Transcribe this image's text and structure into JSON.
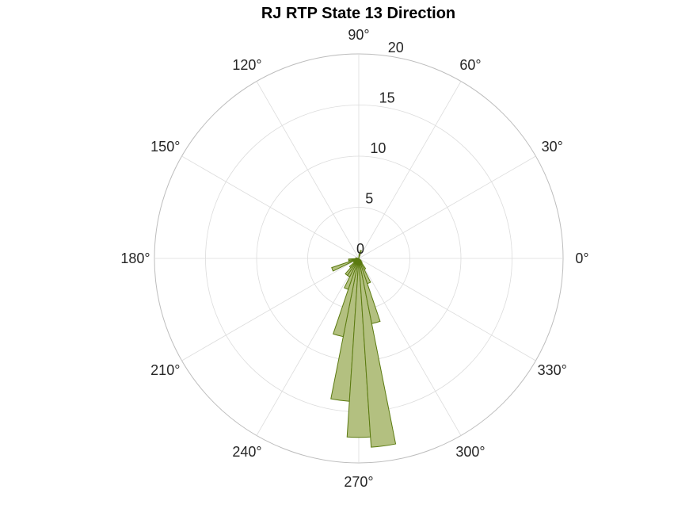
{
  "chart_data": {
    "type": "polar-histogram",
    "title": "RJ  RTP State 13 Direction",
    "theta_ticks": [
      "0°",
      "30°",
      "60°",
      "90°",
      "120°",
      "150°",
      "180°",
      "210°",
      "240°",
      "270°",
      "300°",
      "330°"
    ],
    "theta_tick_values_deg": [
      0,
      30,
      60,
      90,
      120,
      150,
      180,
      210,
      240,
      270,
      300,
      330
    ],
    "r_ticks": [
      "0",
      "5",
      "10",
      "15",
      "20"
    ],
    "r_tick_values": [
      0,
      5,
      10,
      15,
      20
    ],
    "rlim": [
      0,
      20
    ],
    "r_label_angle_deg": 80,
    "bin_width_deg": 7.5,
    "bins": [
      {
        "center_deg": 262.5,
        "value": 14
      },
      {
        "center_deg": 255,
        "value": 7.8
      },
      {
        "center_deg": 247.5,
        "value": 3.2
      },
      {
        "center_deg": 270,
        "value": 17.5
      },
      {
        "center_deg": 277.5,
        "value": 18.5
      },
      {
        "center_deg": 285,
        "value": 6.5
      },
      {
        "center_deg": 292.5,
        "value": 2.6
      },
      {
        "center_deg": 300,
        "value": 1.2
      },
      {
        "center_deg": 240,
        "value": 2
      },
      {
        "center_deg": 232.5,
        "value": 2
      },
      {
        "center_deg": 225,
        "value": 1.2
      },
      {
        "center_deg": 217.5,
        "value": 0.6
      },
      {
        "center_deg": 210,
        "value": 0.4
      },
      {
        "center_deg": 202.5,
        "value": 2.8
      },
      {
        "center_deg": 195,
        "value": 1
      },
      {
        "center_deg": 187.5,
        "value": 1
      },
      {
        "center_deg": 307.5,
        "value": 0.5
      },
      {
        "center_deg": 315,
        "value": 0.3
      },
      {
        "center_deg": 75,
        "value": 0.8
      },
      {
        "center_deg": 82.5,
        "value": 0.4
      },
      {
        "center_deg": 172.5,
        "value": 0.3
      }
    ],
    "grid": true,
    "colors": {
      "bar_fill": "#b3c080",
      "bar_edge": "#5b7a10",
      "grid": "#dcdcdc",
      "outer_ring": "#bdbdbd",
      "text": "#262626"
    }
  }
}
